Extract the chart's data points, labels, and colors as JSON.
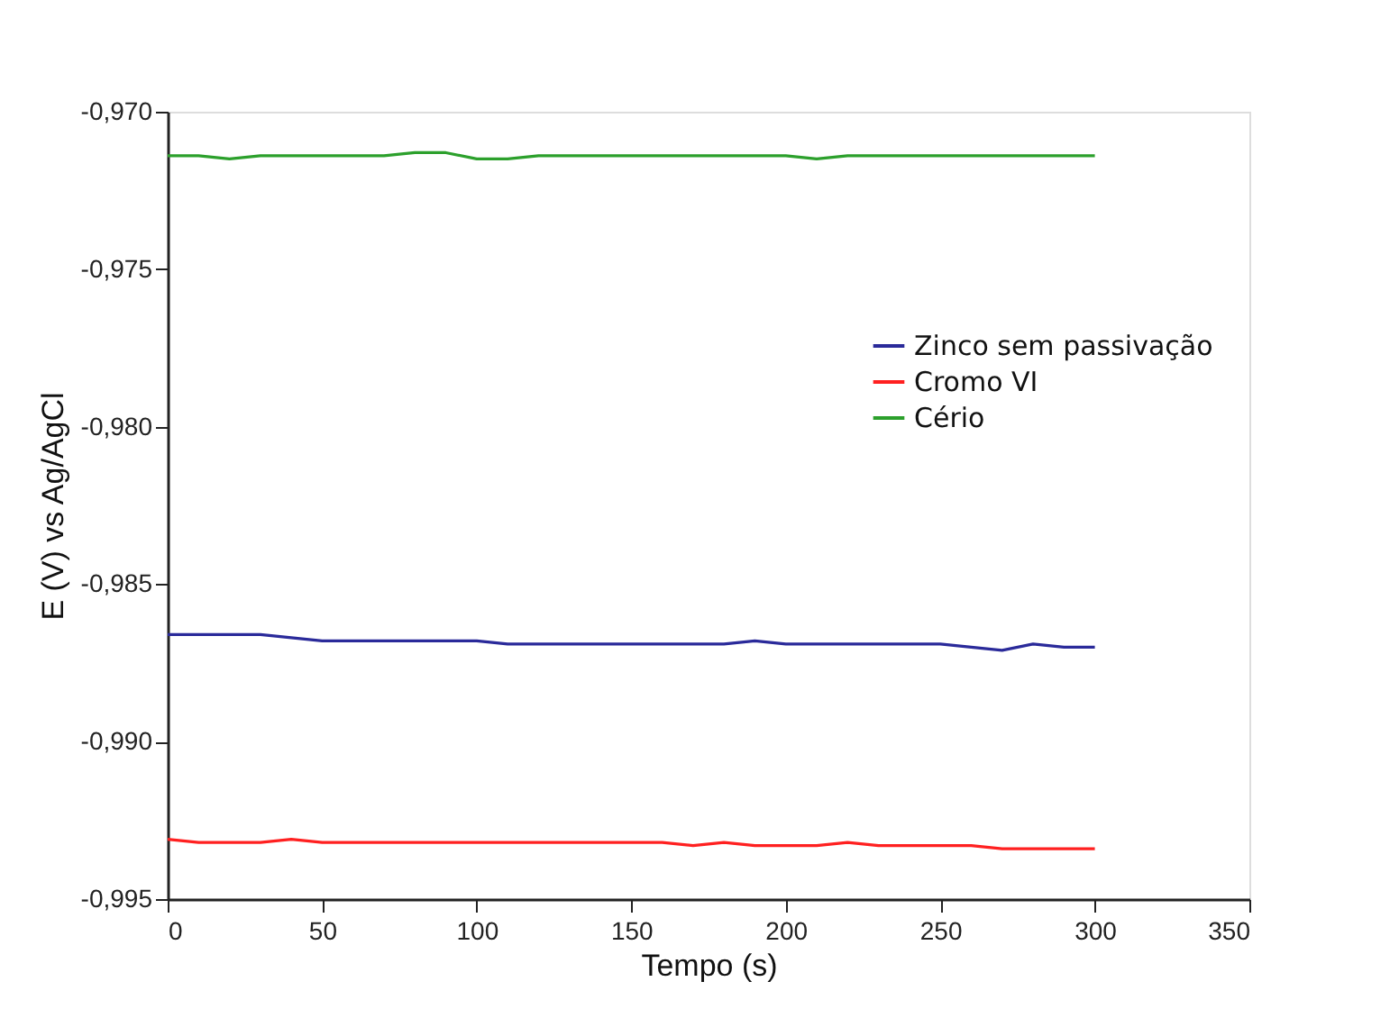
{
  "chart_data": {
    "type": "line",
    "xlabel": "Tempo (s)",
    "ylabel": "E (V) vs Ag/AgCl",
    "x": [
      0,
      10,
      20,
      30,
      40,
      50,
      60,
      70,
      80,
      90,
      100,
      110,
      120,
      130,
      140,
      150,
      160,
      170,
      180,
      190,
      200,
      210,
      220,
      230,
      240,
      250,
      260,
      270,
      280,
      290,
      300
    ],
    "series": [
      {
        "name": "Zinco sem passivação",
        "color": "#2a2a9a",
        "values": [
          -0.9866,
          -0.9866,
          -0.9866,
          -0.9866,
          -0.9867,
          -0.9868,
          -0.9868,
          -0.9868,
          -0.9868,
          -0.9868,
          -0.9868,
          -0.9869,
          -0.9869,
          -0.9869,
          -0.9869,
          -0.9869,
          -0.9869,
          -0.9869,
          -0.9869,
          -0.9868,
          -0.9869,
          -0.9869,
          -0.9869,
          -0.9869,
          -0.9869,
          -0.9869,
          -0.987,
          -0.9871,
          -0.9869,
          -0.987,
          -0.987
        ]
      },
      {
        "name": "Cromo VI",
        "color": "#ff2020",
        "values": [
          -0.9931,
          -0.9932,
          -0.9932,
          -0.9932,
          -0.9931,
          -0.9932,
          -0.9932,
          -0.9932,
          -0.9932,
          -0.9932,
          -0.9932,
          -0.9932,
          -0.9932,
          -0.9932,
          -0.9932,
          -0.9932,
          -0.9932,
          -0.9933,
          -0.9932,
          -0.9933,
          -0.9933,
          -0.9933,
          -0.9932,
          -0.9933,
          -0.9933,
          -0.9933,
          -0.9933,
          -0.9934,
          -0.9934,
          -0.9934,
          -0.9934
        ]
      },
      {
        "name": "Cério",
        "color": "#2ca02c",
        "values": [
          -0.9714,
          -0.9714,
          -0.9715,
          -0.9714,
          -0.9714,
          -0.9714,
          -0.9714,
          -0.9714,
          -0.9713,
          -0.9713,
          -0.9715,
          -0.9715,
          -0.9714,
          -0.9714,
          -0.9714,
          -0.9714,
          -0.9714,
          -0.9714,
          -0.9714,
          -0.9714,
          -0.9714,
          -0.9715,
          -0.9714,
          -0.9714,
          -0.9714,
          -0.9714,
          -0.9714,
          -0.9714,
          -0.9714,
          -0.9714,
          -0.9714
        ]
      }
    ],
    "xlim": [
      0,
      350
    ],
    "xticks": [
      0,
      50,
      100,
      150,
      200,
      250,
      300,
      350
    ],
    "ylim": [
      -0.995,
      -0.97
    ],
    "yticks": [
      {
        "value": -0.995,
        "label": "-0,995"
      },
      {
        "value": -0.99,
        "label": "-0,990"
      },
      {
        "value": -0.985,
        "label": "-0,985"
      },
      {
        "value": -0.98,
        "label": "-0,980"
      },
      {
        "value": -0.975,
        "label": "-0,975"
      },
      {
        "value": -0.97,
        "label": "-0,970"
      }
    ],
    "legend": "right",
    "grid": false,
    "marker": "none",
    "line_style": "solid"
  }
}
